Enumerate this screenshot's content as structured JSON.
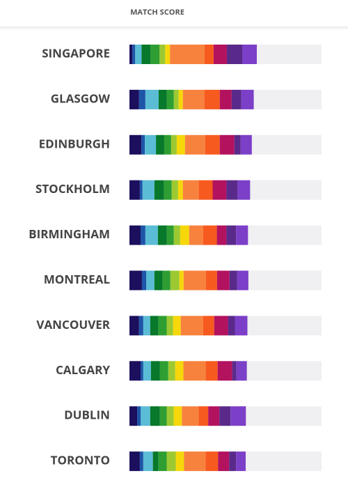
{
  "chart_data": {
    "type": "stacked-bar-horizontal",
    "title": "MATCH SCORE",
    "categories": [
      "SINGAPORE",
      "GLASGOW",
      "EDINBURGH",
      "STOCKHOLM",
      "BIRMINGHAM",
      "MONTREAL",
      "VANCOUVER",
      "CALGARY",
      "DUBLIN",
      "TORONTO"
    ],
    "xlim": [
      0,
      100
    ],
    "track_color": "#f0eff2",
    "series": [
      {
        "color": "#1b0f5e",
        "values": [
          1.5,
          5,
          6.2,
          5.4,
          5.8,
          6.5,
          5,
          5.8,
          4,
          5.4
        ]
      },
      {
        "color": "#1f55a8",
        "values": [
          1.5,
          3.3,
          1.8,
          1.4,
          2.5,
          2.2,
          2.2,
          1.4,
          1.8,
          1.8
        ]
      },
      {
        "color": "#5bbcd6",
        "values": [
          3.3,
          6.9,
          5.8,
          6.2,
          6.5,
          4.3,
          3.6,
          4,
          5,
          5
        ]
      },
      {
        "color": "#08782a",
        "values": [
          4.7,
          4.3,
          4.3,
          5,
          4.7,
          4.3,
          4.3,
          4.7,
          5,
          2.9
        ]
      },
      {
        "color": "#2e9e32",
        "values": [
          4.7,
          3.6,
          3.6,
          4,
          3.6,
          4,
          4.3,
          4.3,
          3.6,
          4.3
        ]
      },
      {
        "color": "#9cc932",
        "values": [
          2.9,
          2.5,
          2.9,
          3.3,
          3.3,
          4.7,
          3.3,
          3.6,
          3.6,
          4.7
        ]
      },
      {
        "color": "#f5d70a",
        "values": [
          2.5,
          2.2,
          4.3,
          2.5,
          4.7,
          2.2,
          4,
          4.3,
          4.3,
          4.3
        ]
      },
      {
        "color": "#f7823e",
        "values": [
          18,
          11.2,
          10.5,
          8.3,
          7.2,
          11.6,
          11.6,
          11.6,
          8.7,
          11.2
        ]
      },
      {
        "color": "#f75a1e",
        "values": [
          4.7,
          8,
          7.6,
          7.2,
          7.2,
          5.8,
          5.8,
          6.2,
          5,
          6.5
        ]
      },
      {
        "color": "#b3125f",
        "values": [
          6.9,
          6.2,
          7.6,
          7.2,
          5,
          6.5,
          7.2,
          7.6,
          5.8,
          5.8
        ]
      },
      {
        "color": "#5a2a8a",
        "values": [
          8,
          5,
          3.3,
          5.8,
          5,
          4,
          3.6,
          2.2,
          5.8,
          3.6
        ]
      },
      {
        "color": "#7b3fc8",
        "values": [
          7.6,
          6.5,
          5.8,
          6.5,
          6.2,
          5.8,
          6.5,
          5.4,
          8,
          5
        ]
      }
    ]
  }
}
